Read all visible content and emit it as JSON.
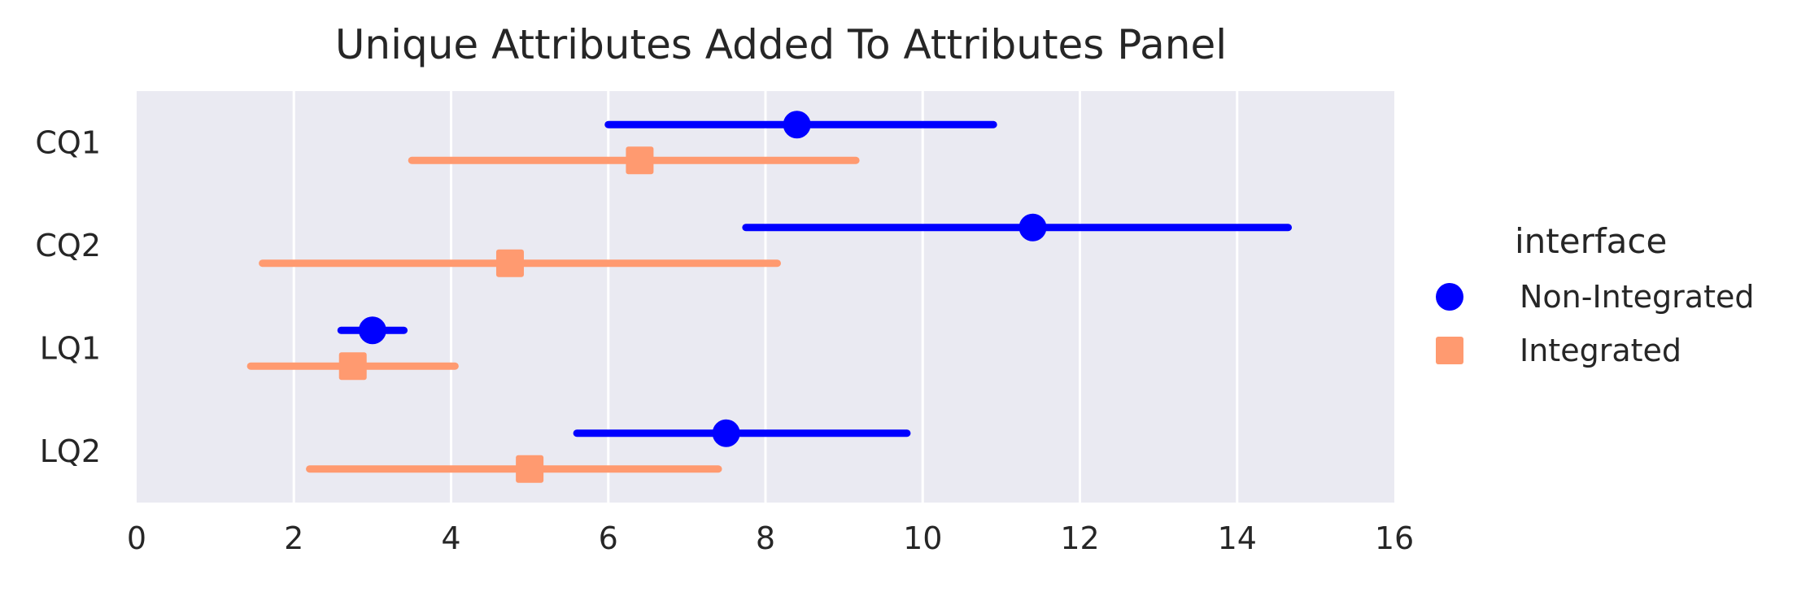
{
  "chart_data": {
    "type": "pointplot",
    "title": "Unique Attributes Added To Attributes Panel",
    "xlabel": "",
    "ylabel": "",
    "xlim": [
      0,
      16
    ],
    "xticks": [
      "0",
      "2",
      "4",
      "6",
      "8",
      "10",
      "12",
      "14",
      "16"
    ],
    "categories": [
      "CQ1",
      "CQ2",
      "LQ1",
      "LQ2"
    ],
    "grid": true,
    "legend": {
      "title": "interface",
      "placement": "right"
    },
    "series": [
      {
        "name": "Non-Integrated",
        "marker": "circle",
        "color": "#0000ff",
        "values": [
          8.4,
          11.4,
          3.0,
          7.5
        ],
        "ci_low": [
          6.0,
          7.75,
          2.6,
          5.6
        ],
        "ci_high": [
          10.9,
          14.65,
          3.4,
          9.8
        ]
      },
      {
        "name": "Integrated",
        "marker": "square",
        "color": "#ff9a70",
        "values": [
          6.4,
          4.75,
          2.75,
          5.0
        ],
        "ci_low": [
          3.5,
          1.6,
          1.45,
          2.2
        ],
        "ci_high": [
          9.15,
          8.15,
          4.05,
          7.4
        ]
      }
    ]
  }
}
